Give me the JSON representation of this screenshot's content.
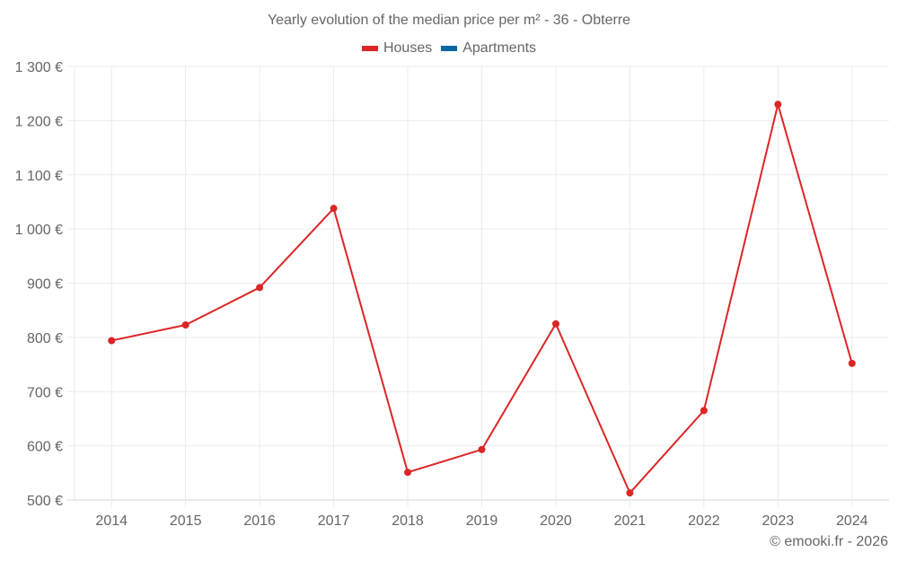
{
  "chart": {
    "title": "Yearly evolution of the median price per m² - 36 - Obterre",
    "legend": [
      {
        "label": "Houses",
        "color": "#dc2626"
      },
      {
        "label": "Apartments",
        "color": "#0369a1"
      }
    ],
    "footer": "© emooki.fr - 2026"
  },
  "chart_data": {
    "type": "line",
    "title": "Yearly evolution of the median price per m² - 36 - Obterre",
    "xlabel": "",
    "ylabel": "",
    "categories": [
      "2014",
      "2015",
      "2016",
      "2017",
      "2018",
      "2019",
      "2020",
      "2021",
      "2022",
      "2023",
      "2024"
    ],
    "series": [
      {
        "name": "Houses",
        "color": "#dc2626",
        "values": [
          794,
          823,
          892,
          1038,
          551,
          593,
          825,
          513,
          665,
          1230,
          752
        ]
      },
      {
        "name": "Apartments",
        "color": "#0369a1",
        "values": []
      }
    ],
    "ylim": [
      500,
      1300
    ],
    "yticks": [
      500,
      600,
      700,
      800,
      900,
      1000,
      1100,
      1200,
      1300
    ],
    "ytick_labels": [
      "500 €",
      "600 €",
      "700 €",
      "800 €",
      "900 €",
      "1 000 €",
      "1 100 €",
      "1 200 €",
      "1 300 €"
    ],
    "grid": true,
    "legend_position": "top"
  }
}
